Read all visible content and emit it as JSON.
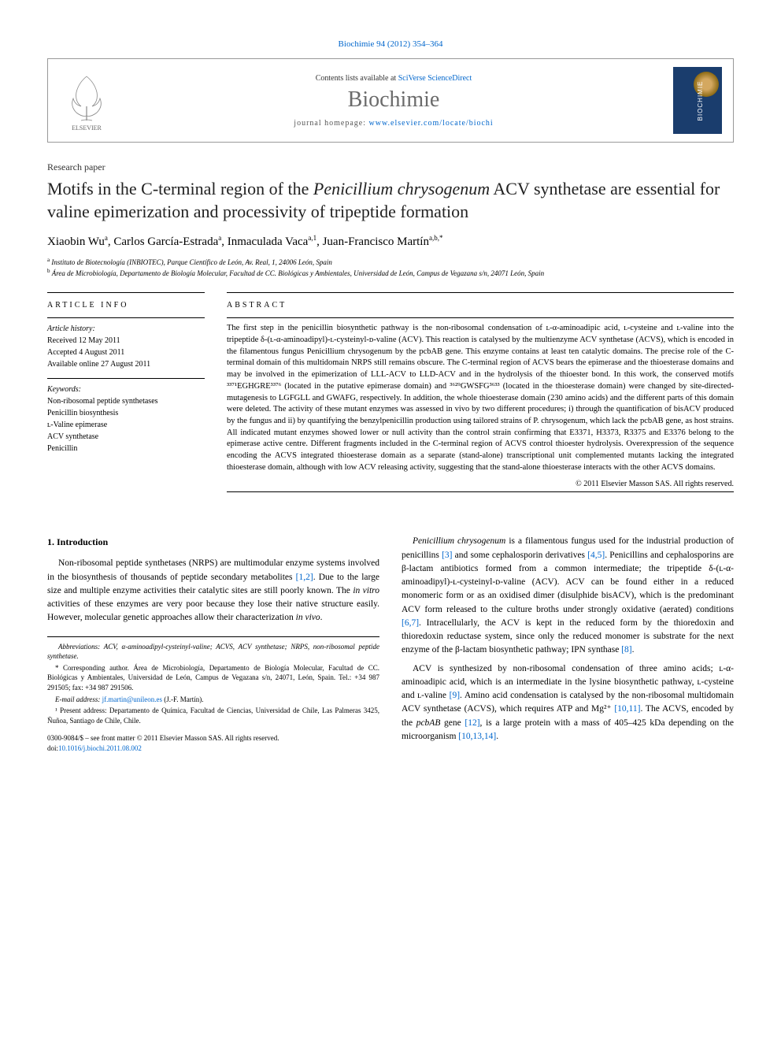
{
  "header": {
    "citation": "Biochimie 94 (2012) 354–364",
    "contents_prefix": "Contents lists available at ",
    "contents_link": "SciVerse ScienceDirect",
    "journal_name": "Biochimie",
    "homepage_prefix": "journal homepage: ",
    "homepage_link": "www.elsevier.com/locate/biochi",
    "cover_label": "BIOCHIMIE"
  },
  "paper": {
    "type": "Research paper",
    "title_pre": "Motifs in the C-terminal region of the ",
    "title_em": "Penicillium chrysogenum",
    "title_post": " ACV synthetase are essential for valine epimerization and processivity of tripeptide formation",
    "authors_html": "Xiaobin Wu<sup>a</sup>, Carlos García-Estrada<sup>a</sup>, Inmaculada Vaca<sup>a,1</sup>, Juan-Francisco Martín<sup>a,b,*</sup>",
    "aff_a": "Instituto de Biotecnología (INBIOTEC), Parque Científico de León, Av. Real, 1, 24006 León, Spain",
    "aff_b": "Área de Microbiología, Departamento de Biología Molecular, Facultad de CC. Biológicas y Ambientales, Universidad de León, Campus de Vegazana s/n, 24071 León, Spain"
  },
  "info": {
    "heading": "ARTICLE INFO",
    "history_label": "Article history:",
    "received": "Received 12 May 2011",
    "accepted": "Accepted 4 August 2011",
    "online": "Available online 27 August 2011",
    "keywords_label": "Keywords:",
    "keywords": [
      "Non-ribosomal peptide synthetases",
      "Penicillin biosynthesis",
      "ʟ-Valine epimerase",
      "ACV synthetase",
      "Penicillin"
    ]
  },
  "abstract": {
    "heading": "ABSTRACT",
    "text": "The first step in the penicillin biosynthetic pathway is the non-ribosomal condensation of ʟ-α-aminoadipic acid, ʟ-cysteine and ʟ-valine into the tripeptide δ-(ʟ-α-aminoadipyl)-ʟ-cysteinyl-ᴅ-valine (ACV). This reaction is catalysed by the multienzyme ACV synthetase (ACVS), which is encoded in the filamentous fungus Penicillium chrysogenum by the pcbAB gene. This enzyme contains at least ten catalytic domains. The precise role of the C-terminal domain of this multidomain NRPS still remains obscure. The C-terminal region of ACVS bears the epimerase and the thioesterase domains and may be involved in the epimerization of LLL-ACV to LLD-ACV and in the hydrolysis of the thioester bond. In this work, the conserved motifs ³³⁷¹EGHGRE³³⁷⁶ (located in the putative epimerase domain) and ³⁶²⁹GWSFG³⁶³³ (located in the thioesterase domain) were changed by site-directed-mutagenesis to LGFGLL and GWAFG, respectively. In addition, the whole thioesterase domain (230 amino acids) and the different parts of this domain were deleted. The activity of these mutant enzymes was assessed in vivo by two different procedures; i) through the quantification of bisACV produced by the fungus and ii) by quantifying the benzylpenicillin production using tailored strains of P. chrysogenum, which lack the pcbAB gene, as host strains. All indicated mutant enzymes showed lower or null activity than the control strain confirming that E3371, H3373, R3375 and E3376 belong to the epimerase active centre. Different fragments included in the C-terminal region of ACVS control thioester hydrolysis. Overexpression of the sequence encoding the ACVS integrated thioesterase domain as a separate (stand-alone) transcriptional unit complemented mutants lacking the integrated thioesterase domain, although with low ACV releasing activity, suggesting that the stand-alone thioesterase interacts with the other ACVS domains.",
    "copyright": "© 2011 Elsevier Masson SAS. All rights reserved."
  },
  "body": {
    "section_num": "1.",
    "section_title": "Introduction",
    "col1_p1": "Non-ribosomal peptide synthetases (NRPS) are multimodular enzyme systems involved in the biosynthesis of thousands of peptide secondary metabolites [1,2]. Due to the large size and multiple enzyme activities their catalytic sites are still poorly known. The in vitro activities of these enzymes are very poor because they lose their native structure easily. However, molecular genetic approaches allow their characterization in vivo.",
    "col2_p1": "Penicillium chrysogenum is a filamentous fungus used for the industrial production of penicillins [3] and some cephalosporin derivatives [4,5]. Penicillins and cephalosporins are β-lactam antibiotics formed from a common intermediate; the tripeptide δ-(ʟ-α-aminoadipyl)-ʟ-cysteinyl-ᴅ-valine (ACV). ACV can be found either in a reduced monomeric form or as an oxidised dimer (disulphide bisACV), which is the predominant ACV form released to the culture broths under strongly oxidative (aerated) conditions [6,7]. Intracellularly, the ACV is kept in the reduced form by the thioredoxin and thioredoxin reductase system, since only the reduced monomer is substrate for the next enzyme of the β-lactam biosynthetic pathway; IPN synthase [8].",
    "col2_p2": "ACV is synthesized by non-ribosomal condensation of three amino acids; ʟ-α-aminoadipic acid, which is an intermediate in the lysine biosynthetic pathway, ʟ-cysteine and ʟ-valine [9]. Amino acid condensation is catalysed by the non-ribosomal multidomain ACV synthetase (ACVS), which requires ATP and Mg²⁺ [10,11]. The ACVS, encoded by the pcbAB gene [12], is a large protein with a mass of 405–425 kDa depending on the microorganism [10,13,14]."
  },
  "footnotes": {
    "abbrev": "Abbreviations: ACV, α-aminoadipyl-cysteinyl-valine; ACVS, ACV synthetase; NRPS, non-ribosomal peptide synthetase.",
    "corresp": "* Corresponding author. Área de Microbiología, Departamento de Biología Molecular, Facultad de CC. Biológicas y Ambientales, Universidad de León, Campus de Vegazana s/n, 24071, León, Spain. Tel.: +34 987 291505; fax: +34 987 291506.",
    "email_label": "E-mail address: ",
    "email": "jf.martin@unileon.es",
    "email_suffix": " (J.-F. Martín).",
    "present": "¹ Present address: Departamento de Química, Facultad de Ciencias, Universidad de Chile, Las Palmeras 3425, Ñuñoa, Santiago de Chile, Chile."
  },
  "bottom": {
    "issn": "0300-9084/$ – see front matter © 2011 Elsevier Masson SAS. All rights reserved.",
    "doi_label": "doi:",
    "doi": "10.1016/j.biochi.2011.08.002"
  },
  "refs": {
    "r12": "[1,2]",
    "r3": "[3]",
    "r45": "[4,5]",
    "r67": "[6,7]",
    "r8": "[8]",
    "r9": "[9]",
    "r1011": "[10,11]",
    "r12b": "[12]",
    "r101314": "[10,13,14]"
  }
}
